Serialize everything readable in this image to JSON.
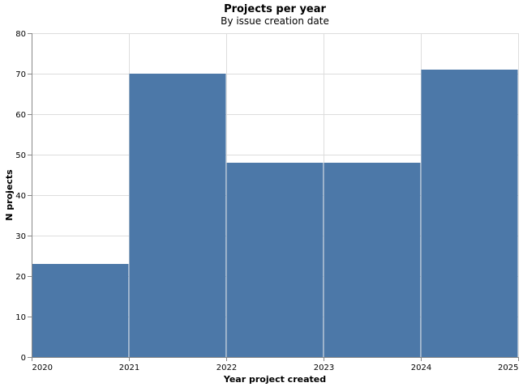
{
  "chart_data": {
    "type": "bar",
    "title": "Projects per year",
    "subtitle": "By issue creation date",
    "xlabel": "Year project created",
    "ylabel": "N projects",
    "bins": [
      {
        "start": 2020,
        "end": 2021,
        "value": 23
      },
      {
        "start": 2021,
        "end": 2022,
        "value": 70
      },
      {
        "start": 2022,
        "end": 2023,
        "value": 48
      },
      {
        "start": 2023,
        "end": 2024,
        "value": 48
      },
      {
        "start": 2024,
        "end": 2025,
        "value": 71
      }
    ],
    "x_ticks": [
      "2020",
      "2021",
      "2022",
      "2023",
      "2024",
      "2025"
    ],
    "y_ticks": [
      "0",
      "10",
      "20",
      "30",
      "40",
      "50",
      "60",
      "70",
      "80"
    ],
    "xlim": [
      2020,
      2025
    ],
    "ylim": [
      0,
      80
    ],
    "grid": true,
    "legend": "none",
    "colors": {
      "bar": "#4c78a8",
      "grid": "#dddddd",
      "axis": "#888888",
      "bar_edge": "#ffffff"
    }
  }
}
